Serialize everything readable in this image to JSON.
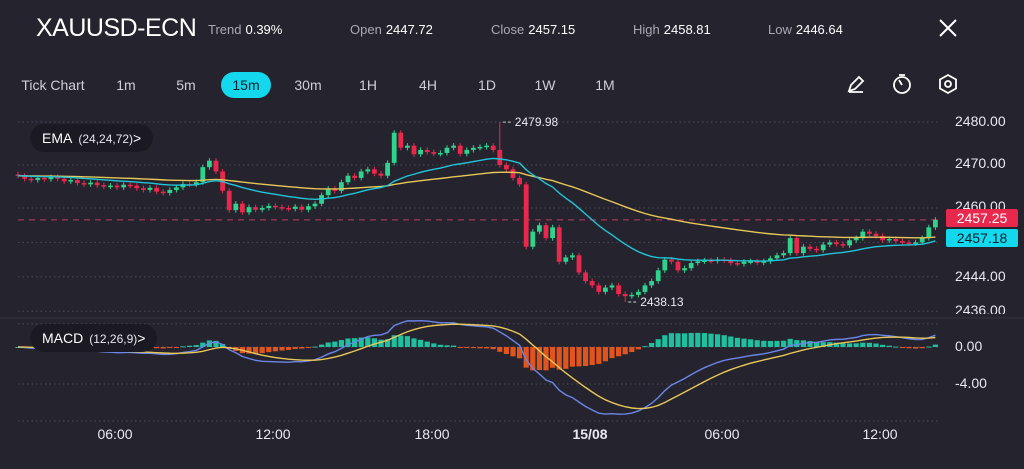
{
  "header": {
    "symbol": "XAUUSD-ECN",
    "stats": [
      {
        "label": "Trend",
        "value": "0.39%"
      },
      {
        "label": "Open",
        "value": "2447.72"
      },
      {
        "label": "Close",
        "value": "2457.15"
      },
      {
        "label": "High",
        "value": "2458.81"
      },
      {
        "label": "Low",
        "value": "2446.64"
      }
    ],
    "close_icon": "close-icon"
  },
  "toolbar": {
    "timeframes": [
      "Tick Chart",
      "1m",
      "5m",
      "15m",
      "30m",
      "1H",
      "4H",
      "1D",
      "1W",
      "1M"
    ],
    "active_timeframe": "15m",
    "tools": [
      "draw-pencil-icon",
      "timer-icon",
      "settings-hexagon-icon"
    ]
  },
  "indicators": {
    "ema": {
      "name": "EMA",
      "params": "(24,24,72)",
      "chevron": ">"
    },
    "macd": {
      "name": "MACD",
      "params": "(12,26,9)",
      "chevron": ">"
    }
  },
  "price_axis": [
    "2480.00",
    "2470.00",
    "2460.00",
    "2444.00",
    "2436.00"
  ],
  "macd_axis": [
    "0.00",
    "-4.00"
  ],
  "time_axis": [
    "06:00",
    "12:00",
    "18:00",
    "15/08",
    "06:00",
    "12:00"
  ],
  "badges": {
    "last_price": "2457.25",
    "ema_value": "2457.18"
  },
  "colors": {
    "background": "#25242e",
    "up": "#2fd38c",
    "down": "#e9284e",
    "accent": "#14d8ee",
    "ema_fast": "#22c4d8",
    "ema_slow": "#e6c75a",
    "macd_line": "#6b86e8",
    "signal_line": "#e6c75a",
    "hist_pos": "#1fc0a0",
    "hist_neg": "#e0541e"
  },
  "chart_data": {
    "type": "candlestick",
    "interval": "15m",
    "ylim": [
      2434,
      2482
    ],
    "high_label": "2479.98",
    "low_label": "2438.13",
    "high_value": 2479.98,
    "low_value": 2438.13,
    "high_index": 73,
    "low_index": 92,
    "close": [
      2467.5,
      2466.8,
      2466.5,
      2467,
      2466.7,
      2467.2,
      2466.8,
      2466.2,
      2466.5,
      2465.8,
      2465.5,
      2465.9,
      2465.3,
      2465.0,
      2465.2,
      2464.8,
      2465.4,
      2465.2,
      2464.6,
      2464.2,
      2464.7,
      2463.8,
      2463.5,
      2464.2,
      2464.8,
      2465.6,
      2465.5,
      2466.0,
      2469.5,
      2471.0,
      2468.5,
      2464.0,
      2459.5,
      2461.0,
      2459.0,
      2460.2,
      2459.6,
      2460.0,
      2460.5,
      2460.2,
      2460.0,
      2459.8,
      2460.3,
      2459.6,
      2460.4,
      2461.0,
      2463.0,
      2464.5,
      2464.0,
      2466.0,
      2467.5,
      2467.0,
      2468.5,
      2469.0,
      2468.0,
      2467.5,
      2470.5,
      2477.5,
      2474.0,
      2474.5,
      2472.5,
      2473.5,
      2473.0,
      2472.6,
      2472.8,
      2474.0,
      2474.5,
      2472.6,
      2473.5,
      2474.0,
      2474.2,
      2474.5,
      2473.5,
      2470.0,
      2469.0,
      2467.0,
      2465.5,
      2451.0,
      2454.5,
      2456.0,
      2453.0,
      2455.5,
      2447.5,
      2448.5,
      2449.0,
      2445.0,
      2443.0,
      2442.0,
      2440.5,
      2441.5,
      2442.0,
      2440.0,
      2439.5,
      2439.8,
      2440.5,
      2442.0,
      2443.0,
      2445.5,
      2448.0,
      2447.5,
      2445.5,
      2446.0,
      2447.2,
      2447.6,
      2447.8,
      2447.7,
      2448.0,
      2447.8,
      2447.2,
      2447.0,
      2447.5,
      2447.6,
      2447.3,
      2447.6,
      2448.3,
      2449.0,
      2449.5,
      2453.0,
      2449.5,
      2451.0,
      2450.5,
      2450.2,
      2451.5,
      2452.0,
      2451.6,
      2451.3,
      2452.5,
      2453.0,
      2454.5,
      2454.0,
      2453.5,
      2452.5,
      2452.8,
      2452.3,
      2452.0,
      2451.8,
      2452.0,
      2453.0,
      2455.5,
      2457.25
    ]
  }
}
